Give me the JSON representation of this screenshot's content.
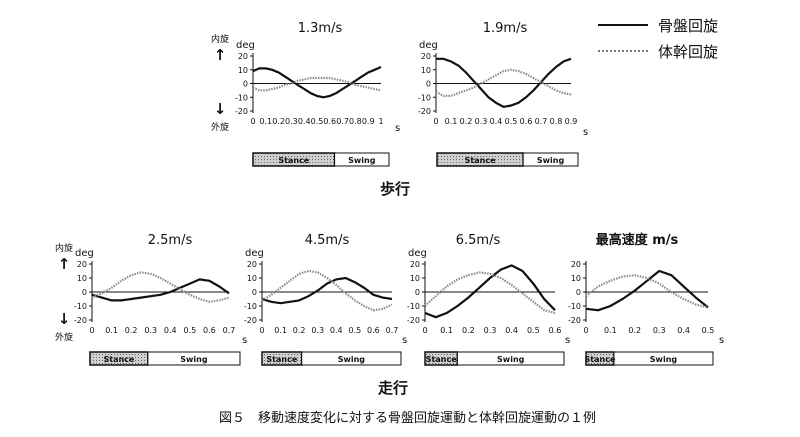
{
  "legend": {
    "pelvis": "骨盤回旋",
    "trunk": "体幹回旋"
  },
  "labels": {
    "walk_section": "歩行",
    "run_section": "走行",
    "caption": "図５　移動速度変化に対する骨盤回旋運動と体幹回旋運動の１例",
    "internal_rotation": "内旋",
    "external_rotation": "外旋",
    "up_arrow": "↑",
    "down_arrow": "↓",
    "y_unit": "deg",
    "x_unit": "s"
  },
  "chart_data": [
    {
      "type": "line",
      "title": "1.3m/s",
      "group": "walk",
      "ylabel": "deg",
      "xlabel": "s",
      "xlim": [
        0,
        1
      ],
      "ylim": [
        -20,
        20
      ],
      "xticks": [
        "0",
        "0.1",
        "0.2",
        "0.3",
        "0.4",
        "0.5",
        "0.6",
        "0.7",
        "0.8",
        "0.9",
        "1"
      ],
      "yticks": [
        "20",
        "10",
        "0",
        "-10",
        "-20"
      ],
      "stance_end": 0.6,
      "phase_labels": [
        "Stance",
        "Swing"
      ],
      "series": [
        {
          "name": "骨盤回旋",
          "x": [
            0,
            0.05,
            0.1,
            0.15,
            0.2,
            0.25,
            0.3,
            0.35,
            0.4,
            0.45,
            0.5,
            0.55,
            0.6,
            0.65,
            0.7,
            0.75,
            0.8,
            0.85,
            0.9,
            0.95,
            1.0
          ],
          "y": [
            9,
            11,
            11,
            10,
            8,
            5,
            2,
            -1,
            -4,
            -7,
            -9,
            -10,
            -9,
            -7,
            -4,
            -1,
            2,
            5,
            8,
            10,
            12
          ]
        },
        {
          "name": "体幹回旋",
          "x": [
            0,
            0.05,
            0.1,
            0.15,
            0.2,
            0.25,
            0.3,
            0.35,
            0.4,
            0.45,
            0.5,
            0.55,
            0.6,
            0.65,
            0.7,
            0.75,
            0.8,
            0.85,
            0.9,
            0.95,
            1.0
          ],
          "y": [
            -3,
            -5,
            -5,
            -4,
            -3,
            -1,
            0,
            2,
            3,
            4,
            4,
            4,
            4,
            3,
            2,
            1,
            -1,
            -2,
            -3,
            -4,
            -5
          ]
        }
      ]
    },
    {
      "type": "line",
      "title": "1.9m/s",
      "group": "walk",
      "ylabel": "deg",
      "xlabel": "s",
      "xlim": [
        0,
        0.9
      ],
      "ylim": [
        -20,
        20
      ],
      "xticks": [
        "0",
        "0.1",
        "0.2",
        "0.3",
        "0.4",
        "0.5",
        "0.6",
        "0.7",
        "0.8",
        "0.9"
      ],
      "yticks": [
        "20",
        "10",
        "0",
        "-10",
        "-20"
      ],
      "stance_end": 0.55,
      "phase_labels": [
        "Stance",
        "Swing"
      ],
      "series": [
        {
          "name": "骨盤回旋",
          "x": [
            0,
            0.05,
            0.1,
            0.15,
            0.2,
            0.25,
            0.3,
            0.35,
            0.4,
            0.45,
            0.5,
            0.55,
            0.6,
            0.65,
            0.7,
            0.75,
            0.8,
            0.85,
            0.9
          ],
          "y": [
            18,
            18,
            16,
            13,
            8,
            2,
            -4,
            -10,
            -14,
            -17,
            -16,
            -14,
            -10,
            -5,
            1,
            7,
            12,
            16,
            18
          ]
        },
        {
          "name": "体幹回旋",
          "x": [
            0,
            0.05,
            0.1,
            0.15,
            0.2,
            0.25,
            0.3,
            0.35,
            0.4,
            0.45,
            0.5,
            0.55,
            0.6,
            0.65,
            0.7,
            0.75,
            0.8,
            0.85,
            0.9
          ],
          "y": [
            -6,
            -9,
            -9,
            -7,
            -5,
            -3,
            0,
            3,
            6,
            9,
            10,
            9,
            7,
            4,
            1,
            -2,
            -5,
            -7,
            -8
          ]
        }
      ]
    },
    {
      "type": "line",
      "title": "2.5m/s",
      "group": "run",
      "ylabel": "deg",
      "xlabel": "s",
      "xlim": [
        0,
        0.7
      ],
      "ylim": [
        -20,
        20
      ],
      "xticks": [
        "0",
        "0.1",
        "0.2",
        "0.3",
        "0.4",
        "0.5",
        "0.6",
        "0.7"
      ],
      "yticks": [
        "20",
        "10",
        "0",
        "-10",
        "-20"
      ],
      "stance_end": 0.27,
      "phase_labels": [
        "Stance",
        "Swing"
      ],
      "series": [
        {
          "name": "骨盤回旋",
          "x": [
            0,
            0.05,
            0.1,
            0.15,
            0.2,
            0.25,
            0.3,
            0.35,
            0.4,
            0.45,
            0.5,
            0.55,
            0.6,
            0.65,
            0.7
          ],
          "y": [
            -2,
            -4,
            -6,
            -6,
            -5,
            -4,
            -3,
            -2,
            0,
            3,
            6,
            9,
            8,
            4,
            -1
          ]
        },
        {
          "name": "体幹回旋",
          "x": [
            0,
            0.05,
            0.1,
            0.15,
            0.2,
            0.25,
            0.3,
            0.35,
            0.4,
            0.45,
            0.5,
            0.55,
            0.6,
            0.65,
            0.7
          ],
          "y": [
            -4,
            -1,
            3,
            8,
            12,
            14,
            13,
            10,
            6,
            2,
            -2,
            -5,
            -7,
            -6,
            -4
          ]
        }
      ]
    },
    {
      "type": "line",
      "title": "4.5m/s",
      "group": "run",
      "ylabel": "deg",
      "xlabel": "s",
      "xlim": [
        0,
        0.7
      ],
      "ylim": [
        -20,
        20
      ],
      "xticks": [
        "0",
        "0.1",
        "0.2",
        "0.3",
        "0.4",
        "0.5",
        "0.6",
        "0.7"
      ],
      "yticks": [
        "20",
        "10",
        "0",
        "-10",
        "-20"
      ],
      "stance_end": 0.2,
      "phase_labels": [
        "Stance",
        "Swing"
      ],
      "series": [
        {
          "name": "骨盤回旋",
          "x": [
            0,
            0.05,
            0.1,
            0.15,
            0.2,
            0.25,
            0.3,
            0.35,
            0.4,
            0.45,
            0.5,
            0.55,
            0.6,
            0.65,
            0.7
          ],
          "y": [
            -5,
            -7,
            -8,
            -7,
            -6,
            -3,
            1,
            6,
            9,
            10,
            7,
            3,
            -2,
            -4,
            -5
          ]
        },
        {
          "name": "体幹回旋",
          "x": [
            0,
            0.05,
            0.1,
            0.15,
            0.2,
            0.25,
            0.3,
            0.35,
            0.4,
            0.45,
            0.5,
            0.55,
            0.6,
            0.65,
            0.7
          ],
          "y": [
            -6,
            -2,
            3,
            8,
            13,
            15,
            14,
            10,
            5,
            -1,
            -6,
            -10,
            -13,
            -12,
            -9
          ]
        }
      ]
    },
    {
      "type": "line",
      "title": "6.5m/s",
      "group": "run",
      "ylabel": "deg",
      "xlabel": "s",
      "xlim": [
        0,
        0.6
      ],
      "ylim": [
        -20,
        20
      ],
      "xticks": [
        "0",
        "0.1",
        "0.2",
        "0.3",
        "0.4",
        "0.5",
        "0.6"
      ],
      "yticks": [
        "20",
        "10",
        "0",
        "-10",
        "-20"
      ],
      "stance_end": 0.14,
      "phase_labels": [
        "Stance",
        "Swing"
      ],
      "series": [
        {
          "name": "骨盤回旋",
          "x": [
            0,
            0.05,
            0.1,
            0.15,
            0.2,
            0.25,
            0.3,
            0.35,
            0.4,
            0.45,
            0.5,
            0.55,
            0.6
          ],
          "y": [
            -15,
            -18,
            -15,
            -10,
            -4,
            3,
            10,
            16,
            19,
            15,
            6,
            -5,
            -13
          ]
        },
        {
          "name": "体幹回旋",
          "x": [
            0,
            0.05,
            0.1,
            0.15,
            0.2,
            0.25,
            0.3,
            0.35,
            0.4,
            0.45,
            0.5,
            0.55,
            0.6
          ],
          "y": [
            -10,
            -3,
            4,
            9,
            12,
            14,
            13,
            10,
            5,
            -1,
            -7,
            -13,
            -15
          ]
        }
      ]
    },
    {
      "type": "line",
      "title": "最高速度 m/s",
      "group": "run",
      "ylabel": "",
      "xlabel": "s",
      "xlim": [
        0,
        0.5
      ],
      "ylim": [
        -20,
        20
      ],
      "xticks": [
        "0",
        "0.1",
        "0.2",
        "0.3",
        "0.4",
        "0.5"
      ],
      "yticks": [
        "20",
        "10",
        "0",
        "-10",
        "-20"
      ],
      "stance_end": 0.11,
      "phase_labels": [
        "Stance",
        "Swing"
      ],
      "series": [
        {
          "name": "骨盤回旋",
          "x": [
            0,
            0.05,
            0.1,
            0.15,
            0.2,
            0.25,
            0.3,
            0.35,
            0.4,
            0.45,
            0.5
          ],
          "y": [
            -12,
            -13,
            -10,
            -5,
            1,
            8,
            15,
            12,
            4,
            -4,
            -11
          ]
        },
        {
          "name": "体幹回旋",
          "x": [
            0,
            0.05,
            0.1,
            0.15,
            0.2,
            0.25,
            0.3,
            0.35,
            0.4,
            0.45,
            0.5
          ],
          "y": [
            -3,
            4,
            8,
            11,
            12,
            10,
            6,
            0,
            -5,
            -9,
            -11
          ]
        }
      ]
    }
  ]
}
